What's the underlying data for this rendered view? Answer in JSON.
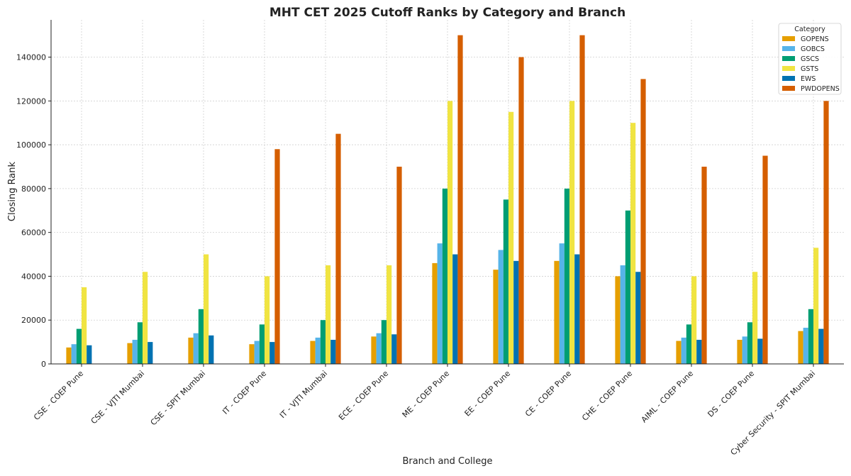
{
  "chart_data": {
    "type": "bar",
    "title": "MHT CET 2025 Cutoff Ranks by Category and Branch",
    "xlabel": "Branch and College",
    "ylabel": "Closing Rank",
    "ylim": [
      0,
      157000
    ],
    "yticks": [
      0,
      20000,
      40000,
      60000,
      80000,
      100000,
      120000,
      140000
    ],
    "grid": true,
    "legend": {
      "title": "Category",
      "placement": "top-right"
    },
    "categories": [
      "CSE - COEP Pune",
      "CSE - VJTI Mumbai",
      "CSE - SPIT Mumbai",
      "IT - COEP Pune",
      "IT - VJTI Mumbai",
      "ECE - COEP Pune",
      "ME - COEP Pune",
      "EE - COEP Pune",
      "CE - COEP Pune",
      "CHE - COEP Pune",
      "AIML - COEP Pune",
      "DS - COEP Pune",
      "Cyber Security - SPIT Mumbai"
    ],
    "series": [
      {
        "name": "GOPENS",
        "color": "#E69F00",
        "values": [
          7500,
          9500,
          12000,
          9000,
          10500,
          12500,
          46000,
          43000,
          47000,
          40000,
          10500,
          11000,
          15000
        ]
      },
      {
        "name": "GOBCS",
        "color": "#56B4E9",
        "values": [
          9000,
          11000,
          14000,
          10500,
          12000,
          14000,
          55000,
          52000,
          55000,
          45000,
          12000,
          12500,
          16500
        ]
      },
      {
        "name": "GSCS",
        "color": "#009E73",
        "values": [
          16000,
          19000,
          25000,
          18000,
          20000,
          20000,
          80000,
          75000,
          80000,
          70000,
          18000,
          19000,
          25000
        ]
      },
      {
        "name": "GSTS",
        "color": "#F0E442",
        "values": [
          35000,
          42000,
          50000,
          40000,
          45000,
          45000,
          120000,
          115000,
          120000,
          110000,
          40000,
          42000,
          53000
        ]
      },
      {
        "name": "EWS",
        "color": "#0072B2",
        "values": [
          8500,
          10000,
          13000,
          10000,
          11000,
          13500,
          50000,
          47000,
          50000,
          42000,
          11000,
          11500,
          16000
        ]
      },
      {
        "name": "PWDOPENS",
        "color": "#D55E00",
        "values": [
          null,
          null,
          null,
          98000,
          105000,
          90000,
          150000,
          140000,
          150000,
          130000,
          90000,
          95000,
          120000
        ]
      }
    ]
  }
}
